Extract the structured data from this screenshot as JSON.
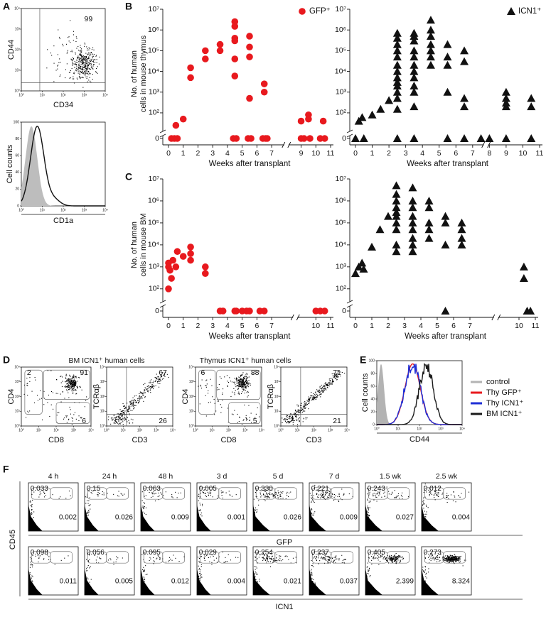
{
  "panel_labels": [
    "A",
    "B",
    "C",
    "D",
    "E",
    "F"
  ],
  "panel_f": {
    "ylabel": "CD45",
    "xlabels": [
      "GFP",
      "ICN1"
    ]
  },
  "chart_data": [
    {
      "type": "flow",
      "xlabel": "CD34",
      "ylabel": "CD44",
      "xlim": [
        1,
        10000
      ],
      "ylim": [
        1,
        10000
      ],
      "xticks": [
        {
          "value": 1,
          "label": "10⁰"
        },
        {
          "value": 10,
          "label": "10¹"
        },
        {
          "value": 100,
          "label": "10²"
        },
        {
          "value": 1000,
          "label": "10³"
        },
        {
          "value": 10000,
          "label": "10⁴"
        }
      ],
      "yticks": [
        {
          "value": 1,
          "label": "10⁰"
        },
        {
          "value": 10,
          "label": "10¹"
        },
        {
          "value": 100,
          "label": "10²"
        },
        {
          "value": 1000,
          "label": "10³"
        },
        {
          "value": 10000,
          "label": "10⁴"
        }
      ],
      "gate_labels": [
        "99"
      ]
    },
    {
      "type": "histogram",
      "xlabel": "CD1a",
      "ylabel": "Cell counts",
      "xlim": [
        1,
        10000
      ],
      "ylim": [
        0,
        100
      ],
      "xticks": [
        {
          "value": 1,
          "label": "10⁰"
        },
        {
          "value": 10,
          "label": "10¹"
        },
        {
          "value": 100,
          "label": "10²"
        },
        {
          "value": 1000,
          "label": "10³"
        },
        {
          "value": 10000,
          "label": "10⁴"
        }
      ],
      "yticks": [
        0,
        20,
        40,
        60,
        80,
        100
      ]
    },
    {
      "type": "scatter",
      "ylabel": [
        "No. of human",
        "cells in mouse thymus"
      ],
      "xlabel": "Weeks after transplant",
      "log_y": true,
      "xlim": [
        0,
        11
      ],
      "ylim": [
        15,
        10000000
      ],
      "xticks": [
        0,
        1,
        2,
        3,
        4,
        5,
        6,
        7,
        9,
        10,
        11
      ],
      "yticks": [
        0,
        {
          "value": 100,
          "label": "10²"
        },
        {
          "value": 1000,
          "label": "10³"
        },
        {
          "value": 10000,
          "label": "10⁴"
        },
        {
          "value": 100000,
          "label": "10⁵"
        },
        {
          "value": 1000000,
          "label": "10⁶"
        },
        {
          "value": 10000000,
          "label": "10⁷"
        }
      ],
      "legend": "upper right",
      "series": [
        {
          "name": "GFP⁺",
          "color": "#e8191e",
          "marker": "circle",
          "x": [
            0.2,
            0.4,
            0.5,
            0.6,
            1.0,
            1.5,
            1.5,
            2.5,
            2.5,
            3.5,
            3.5,
            4.5,
            4.5,
            4.5,
            4.5,
            4.5,
            4.5,
            4.4,
            4.6,
            5.5,
            5.5,
            5.5,
            5.5,
            5.4,
            5.6,
            6.5,
            6.5,
            6.4,
            6.6,
            6.7,
            9.0,
            9.0,
            9.2,
            9.5,
            9.5,
            9.6,
            10.5,
            10.3,
            10.6
          ],
          "values": [
            0,
            0,
            25,
            0,
            50,
            15000,
            5000,
            100000,
            40000,
            200000,
            100000,
            2500000,
            1500000,
            400000,
            300000,
            40000,
            6000,
            0,
            0,
            500000,
            150000,
            50000,
            500,
            0,
            0,
            2500,
            1000,
            0,
            0,
            0,
            40,
            0,
            0,
            80,
            50,
            0,
            40,
            0,
            0
          ]
        }
      ]
    },
    {
      "type": "scatter",
      "log_y": true,
      "xlabel": "Weeks after transplant",
      "xlim": [
        0,
        11
      ],
      "ylim": [
        15,
        10000000
      ],
      "xticks": [
        0,
        1,
        2,
        3,
        4,
        5,
        6,
        7,
        8,
        9,
        10,
        11
      ],
      "yticks": [
        0,
        {
          "value": 100,
          "label": "10²"
        },
        {
          "value": 1000,
          "label": "10³"
        },
        {
          "value": 10000,
          "label": "10⁴"
        },
        {
          "value": 100000,
          "label": "10⁵"
        },
        {
          "value": 1000000,
          "label": "10⁶"
        },
        {
          "value": 10000000,
          "label": "10⁷"
        }
      ],
      "legend": "upper right",
      "series": [
        {
          "name": "ICN1⁺",
          "color": "#111111",
          "marker": "triangle",
          "x": [
            0,
            0.2,
            0.4,
            0.5,
            1,
            1.5,
            2,
            2.5,
            2.5,
            2.5,
            2.5,
            2.5,
            2.5,
            2.5,
            2.5,
            2.5,
            2.5,
            2.5,
            2.5,
            2.5,
            2.5,
            3.5,
            3.5,
            3.5,
            3.5,
            3.5,
            3.5,
            3.5,
            3.5,
            3.5,
            3.5,
            3.5,
            3.5,
            4.5,
            4.5,
            4.5,
            4.5,
            4.5,
            4.5,
            4.5,
            5.5,
            5.5,
            5.5,
            5.5,
            5.5,
            6.5,
            6.5,
            6.5,
            6.5,
            6.5,
            7.5,
            8,
            9,
            9,
            9,
            9,
            9,
            10.5,
            10.5,
            10.5
          ],
          "values": [
            0,
            40,
            60,
            0,
            80,
            150,
            400,
            700000,
            400000,
            200000,
            100000,
            50000,
            20000,
            10000,
            5000,
            3000,
            2000,
            1000,
            500,
            150,
            0,
            700000,
            500000,
            300000,
            100000,
            50000,
            20000,
            10000,
            5000,
            2000,
            1000,
            200,
            0,
            3000000,
            1000000,
            500000,
            200000,
            100000,
            50000,
            20000,
            200000,
            50000,
            20000,
            1000,
            0,
            100000,
            30000,
            500,
            200,
            0,
            0,
            0,
            1000,
            500,
            300,
            200,
            0,
            500,
            200,
            0
          ]
        }
      ]
    },
    {
      "type": "scatter",
      "ylabel": [
        "No. of human",
        "cells in mouse BM"
      ],
      "xlabel": "Weeks after transplant",
      "log_y": true,
      "xlim": [
        0,
        11
      ],
      "ylim": [
        30,
        10000000
      ],
      "xticks": [
        0,
        1,
        2,
        3,
        4,
        5,
        6,
        7,
        10,
        11
      ],
      "yticks": [
        0,
        {
          "value": 100,
          "label": "10²"
        },
        {
          "value": 1000,
          "label": "10³"
        },
        {
          "value": 10000,
          "label": "10⁴"
        },
        {
          "value": 100000,
          "label": "10⁵"
        },
        {
          "value": 1000000,
          "label": "10⁶"
        },
        {
          "value": 10000000,
          "label": "10⁷"
        }
      ],
      "series": [
        {
          "color": "#e8191e",
          "marker": "circle",
          "x": [
            0,
            0,
            0,
            0.1,
            0.2,
            0.3,
            0.5,
            0.6,
            1,
            1.5,
            1.5,
            1.5,
            2.5,
            2.5,
            3.5,
            3.7,
            4.5,
            4.6,
            5.0,
            5.3,
            5.5,
            6.2,
            6.5,
            10.0,
            10.3,
            10.6
          ],
          "values": [
            100,
            1500,
            1000,
            700,
            300,
            2000,
            1000,
            5000,
            3000,
            8000,
            4000,
            2000,
            1000,
            500,
            0,
            0,
            0,
            0,
            0,
            0,
            0,
            0,
            0,
            0,
            0,
            0
          ]
        }
      ]
    },
    {
      "type": "scatter",
      "xlabel": "Weeks after transplant",
      "log_y": true,
      "xlim": [
        0,
        11
      ],
      "ylim": [
        30,
        10000000
      ],
      "xticks": [
        0,
        1,
        2,
        3,
        4,
        5,
        6,
        7,
        10,
        11
      ],
      "yticks": [
        0,
        {
          "value": 100,
          "label": "10²"
        },
        {
          "value": 1000,
          "label": "10³"
        },
        {
          "value": 10000,
          "label": "10⁴"
        },
        {
          "value": 100000,
          "label": "10⁵"
        },
        {
          "value": 1000000,
          "label": "10⁶"
        },
        {
          "value": 10000000,
          "label": "10⁷"
        }
      ],
      "series": [
        {
          "color": "#111111",
          "marker": "triangle",
          "x": [
            0,
            0.2,
            0.4,
            0.5,
            1,
            1.5,
            2,
            2.5,
            2.5,
            2.5,
            2.5,
            2.5,
            2.5,
            2.5,
            2.5,
            2.5,
            2.5,
            3.5,
            3.5,
            3.5,
            3.5,
            3.5,
            3.5,
            3.5,
            3.5,
            3.5,
            4.5,
            4.5,
            4.5,
            4.5,
            4.5,
            5.5,
            5.5,
            5.5,
            5.5,
            6.5,
            6.5,
            6.5,
            6.5,
            10.3,
            10.3,
            10.5,
            10.7
          ],
          "values": [
            500,
            1000,
            1500,
            800,
            8000,
            50000,
            200000,
            5000000,
            2000000,
            1000000,
            500000,
            300000,
            200000,
            100000,
            50000,
            10000,
            5000,
            4000000,
            1000000,
            500000,
            200000,
            100000,
            50000,
            20000,
            10000,
            5000,
            1000000,
            500000,
            100000,
            50000,
            20000,
            200000,
            100000,
            10000,
            0,
            100000,
            50000,
            20000,
            10000,
            1000,
            300,
            0,
            0
          ]
        }
      ]
    },
    {
      "type": "flow",
      "title": "BM ICN1⁺ human cells",
      "xlabel": "CD8",
      "ylabel": "CD4",
      "xlim": [
        1,
        10000
      ],
      "ylim": [
        1,
        10000
      ],
      "xticks": [
        {
          "value": 1,
          "label": "10⁰"
        },
        {
          "value": 10,
          "label": "10¹"
        },
        {
          "value": 100,
          "label": "10²"
        },
        {
          "value": 1000,
          "label": "10³"
        },
        {
          "value": 10000,
          "label": "10⁴"
        }
      ],
      "yticks": [
        {
          "value": 1,
          "label": "10⁰"
        },
        {
          "value": 10,
          "label": "10¹"
        },
        {
          "value": 100,
          "label": "10²"
        },
        {
          "value": 1000,
          "label": "10³"
        },
        {
          "value": 10000,
          "label": "10⁴"
        }
      ],
      "gate_labels": [
        "2",
        "91",
        "6"
      ]
    },
    {
      "type": "flow",
      "xlabel": "CD3",
      "ylabel": "TCRαβ",
      "xlim": [
        1,
        10000
      ],
      "ylim": [
        1,
        10000
      ],
      "xticks": [
        {
          "value": 1,
          "label": "10⁰"
        },
        {
          "value": 10,
          "label": "10¹"
        },
        {
          "value": 100,
          "label": "10²"
        },
        {
          "value": 1000,
          "label": "10³"
        },
        {
          "value": 10000,
          "label": "10⁴"
        }
      ],
      "yticks": [
        {
          "value": 1,
          "label": "10⁰"
        },
        {
          "value": 10,
          "label": "10¹"
        },
        {
          "value": 100,
          "label": "10²"
        },
        {
          "value": 1000,
          "label": "10³"
        },
        {
          "value": 10000,
          "label": "10⁴"
        }
      ],
      "gate_labels": [
        "67",
        "26"
      ]
    },
    {
      "type": "flow",
      "title": "Thymus ICN1⁺ human cells",
      "xlabel": "CD8",
      "ylabel": "CD4",
      "xlim": [
        1,
        10000
      ],
      "ylim": [
        1,
        10000
      ],
      "xticks": [
        {
          "value": 1,
          "label": "10⁰"
        },
        {
          "value": 10,
          "label": "10¹"
        },
        {
          "value": 100,
          "label": "10²"
        },
        {
          "value": 1000,
          "label": "10³"
        },
        {
          "value": 10000,
          "label": "10⁴"
        }
      ],
      "yticks": [
        {
          "value": 1,
          "label": "10⁰"
        },
        {
          "value": 10,
          "label": "10¹"
        },
        {
          "value": 100,
          "label": "10²"
        },
        {
          "value": 1000,
          "label": "10³"
        },
        {
          "value": 10000,
          "label": "10⁴"
        }
      ],
      "gate_labels": [
        "6",
        "88",
        "5"
      ]
    },
    {
      "type": "flow",
      "xlabel": "CD3",
      "ylabel": "TCRαβ",
      "xlim": [
        1,
        10000
      ],
      "ylim": [
        1,
        10000
      ],
      "xticks": [
        {
          "value": 1,
          "label": "10⁰"
        },
        {
          "value": 10,
          "label": "10¹"
        },
        {
          "value": 100,
          "label": "10²"
        },
        {
          "value": 1000,
          "label": "10³"
        },
        {
          "value": 10000,
          "label": "10⁴"
        }
      ],
      "yticks": [
        {
          "value": 1,
          "label": "10⁰"
        },
        {
          "value": 10,
          "label": "10¹"
        },
        {
          "value": 100,
          "label": "10²"
        },
        {
          "value": 1000,
          "label": "10³"
        },
        {
          "value": 10000,
          "label": "10⁴"
        }
      ],
      "gate_labels": [
        "71",
        "21"
      ]
    },
    {
      "type": "histogram",
      "xlabel": "CD44",
      "ylabel": "Cell counts",
      "xlim": [
        1,
        10000
      ],
      "ylim": [
        0,
        100
      ],
      "xticks": [
        {
          "value": 1,
          "label": "10⁰"
        },
        {
          "value": 10,
          "label": "10¹"
        },
        {
          "value": 100,
          "label": "10²"
        },
        {
          "value": 1000,
          "label": "10³"
        },
        {
          "value": 10000,
          "label": "10⁴"
        }
      ],
      "yticks": [
        0,
        20,
        40,
        60,
        80,
        100
      ],
      "series": [
        {
          "name": "control",
          "color": "#b3b3b3"
        },
        {
          "name": "Thy GFP⁺",
          "color": "#e8191e"
        },
        {
          "name": "Thy ICN1⁺",
          "color": "#1f2fd6"
        },
        {
          "name": "BM ICN1⁺",
          "color": "#1a1a1a"
        }
      ]
    },
    {
      "type": "flow",
      "title": "4 h",
      "gate_labels": [
        "0.033",
        "0.002"
      ]
    },
    {
      "type": "flow",
      "title": "24 h",
      "gate_labels": [
        "0.15",
        "0.026"
      ]
    },
    {
      "type": "flow",
      "title": "48 h",
      "gate_labels": [
        "0.063",
        "0.009"
      ]
    },
    {
      "type": "flow",
      "title": "3 d",
      "gate_labels": [
        "0.005",
        "0.001"
      ]
    },
    {
      "type": "flow",
      "title": "5 d",
      "gate_labels": [
        "0.330",
        "0.026"
      ]
    },
    {
      "type": "flow",
      "title": "7 d",
      "gate_labels": [
        "0.221",
        "0.009"
      ]
    },
    {
      "type": "flow",
      "title": "1.5 wk",
      "gate_labels": [
        "0.243",
        "0.027"
      ]
    },
    {
      "type": "flow",
      "title": "2.5 wk",
      "gate_labels": [
        "0.012",
        "0.004"
      ]
    },
    {
      "type": "flow",
      "gate_labels": [
        "0.098",
        "0.011"
      ]
    },
    {
      "type": "flow",
      "gate_labels": [
        "0.056",
        "0.005"
      ]
    },
    {
      "type": "flow",
      "gate_labels": [
        "0.095",
        "0.012"
      ]
    },
    {
      "type": "flow",
      "gate_labels": [
        "0.029",
        "0.004"
      ]
    },
    {
      "type": "flow",
      "gate_labels": [
        "0.254",
        "0.021"
      ]
    },
    {
      "type": "flow",
      "gate_labels": [
        "0.237",
        "0.037"
      ]
    },
    {
      "type": "flow",
      "gate_labels": [
        "0.405",
        "2.399"
      ]
    },
    {
      "type": "flow",
      "gate_labels": [
        "0.273",
        "8.324"
      ]
    }
  ]
}
